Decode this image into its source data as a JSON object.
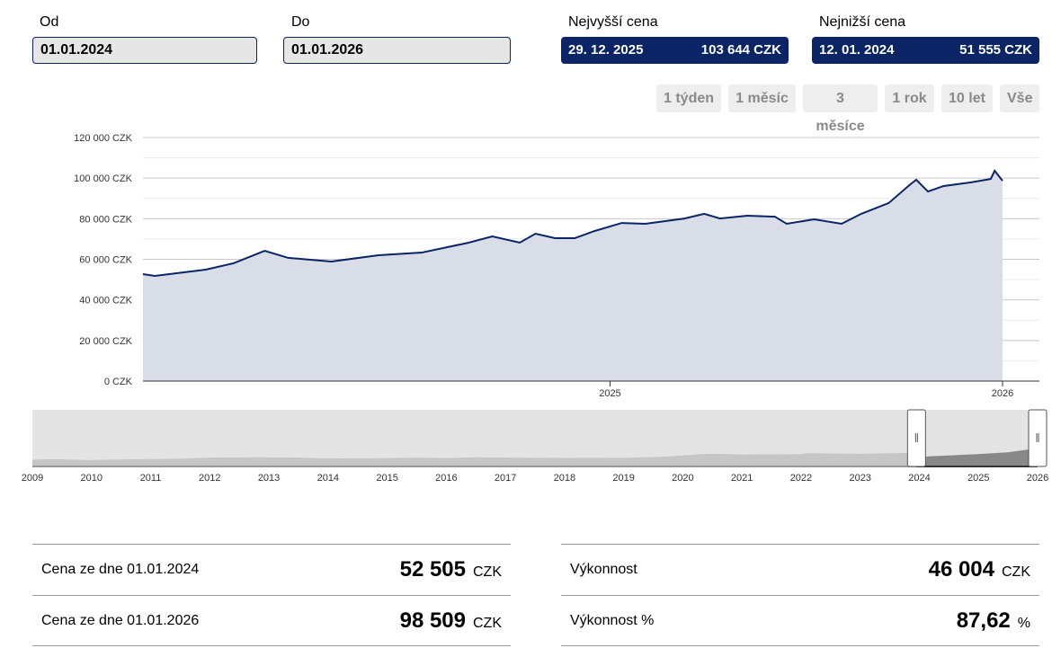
{
  "from": {
    "label": "Od",
    "value": "01.01.2024"
  },
  "to": {
    "label": "Do",
    "value": "01.01.2026"
  },
  "highest": {
    "label": "Nejvyšší cena",
    "date": "29. 12. 2025",
    "value": "103 644 CZK"
  },
  "lowest": {
    "label": "Nejnižší cena",
    "date": "12. 01. 2024",
    "value": "51 555 CZK"
  },
  "ranges": [
    "1 týden",
    "1 měsíc",
    "3 měsíce",
    "1 rok",
    "10 let",
    "Vše"
  ],
  "colors": {
    "accent": "#0a2466",
    "area": "#d9dde8"
  },
  "chart_data": {
    "type": "area",
    "y_ticks": [
      "0 CZK",
      "20 000 CZK",
      "40 000 CZK",
      "60 000 CZK",
      "80 000 CZK",
      "100 000 CZK",
      "120 000 CZK"
    ],
    "ylim": [
      0,
      120000
    ],
    "x_ticks": [
      "2025",
      "2026"
    ],
    "xlim": [
      2023.81,
      2026.094
    ],
    "x": [
      2023.81,
      2023.84,
      2023.97,
      2024.04,
      2024.12,
      2024.18,
      2024.29,
      2024.41,
      2024.52,
      2024.64,
      2024.7,
      2024.77,
      2024.81,
      2024.86,
      2024.91,
      2024.96,
      2025.03,
      2025.09,
      2025.19,
      2025.24,
      2025.28,
      2025.35,
      2025.42,
      2025.45,
      2025.52,
      2025.59,
      2025.64,
      2025.71,
      2025.76,
      2025.78,
      2025.81,
      2025.85,
      2025.92,
      2025.97,
      2025.98,
      2026.0
    ],
    "y": [
      52700,
      51800,
      54900,
      58000,
      64200,
      60700,
      58900,
      62000,
      63300,
      68200,
      71300,
      68200,
      72600,
      70400,
      70400,
      73900,
      77900,
      77500,
      80100,
      82400,
      80100,
      81500,
      81000,
      77500,
      79700,
      77500,
      82400,
      87700,
      96100,
      99200,
      93400,
      96100,
      97900,
      99600,
      103600,
      98700
    ]
  },
  "navigator": {
    "years": [
      "2009",
      "2010",
      "2011",
      "2012",
      "2013",
      "2014",
      "2015",
      "2016",
      "2017",
      "2018",
      "2019",
      "2020",
      "2021",
      "2022",
      "2023",
      "2024",
      "2025",
      "2026"
    ],
    "x": [
      2009,
      2009.3,
      2010,
      2010.5,
      2011,
      2011.5,
      2012,
      2012.8,
      2013.5,
      2014,
      2015,
      2015.5,
      2016,
      2016.5,
      2017,
      2018,
      2019,
      2019.7,
      2020,
      2020.3,
      2020.5,
      2021,
      2022,
      2022.1,
      2023,
      2023.8,
      2024,
      2024.2,
      2025,
      2025.5,
      2025.9,
      2026
    ],
    "y": [
      38,
      42,
      36,
      40,
      42,
      44,
      50,
      52,
      50,
      45,
      47,
      50,
      47,
      52,
      50,
      48,
      49,
      55,
      62,
      70,
      72,
      68,
      70,
      75,
      72,
      76,
      52,
      58,
      70,
      80,
      98,
      99
    ]
  },
  "stats": [
    {
      "label": "Cena ze dne 01.01.2024",
      "value": "52 505",
      "unit": "CZK"
    },
    {
      "label": "Cena ze dne 01.01.2026",
      "value": "98 509",
      "unit": "CZK"
    },
    {
      "label": "Výkonnost",
      "value": "46 004",
      "unit": "CZK"
    },
    {
      "label": "Výkonnost %",
      "value": "87,62",
      "unit": "%"
    }
  ]
}
